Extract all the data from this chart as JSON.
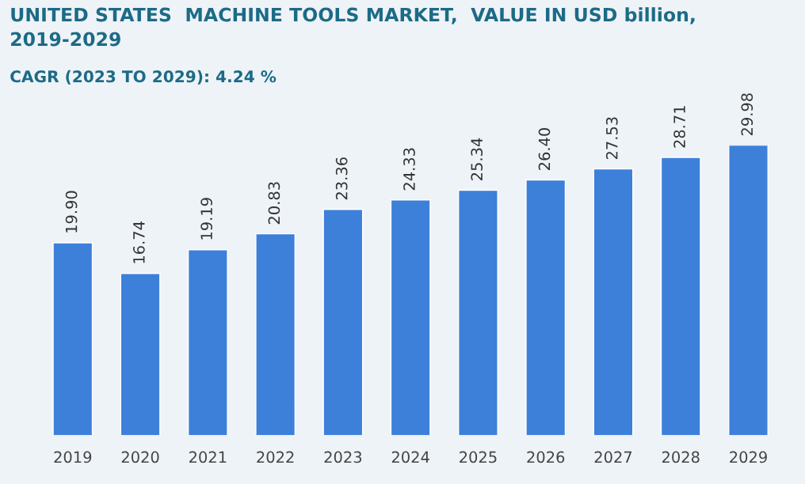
{
  "chart_data": {
    "type": "bar",
    "title": "UNITED STATES  MACHINE TOOLS MARKET,  VALUE IN USD billion,\n2019-2029",
    "subtitle": "CAGR (2023 TO 2029): 4.24 %",
    "categories": [
      "2019",
      "2020",
      "2021",
      "2022",
      "2023",
      "2024",
      "2025",
      "2026",
      "2027",
      "2028",
      "2029"
    ],
    "values": [
      19.9,
      16.74,
      19.19,
      20.83,
      23.36,
      24.33,
      25.34,
      26.4,
      27.53,
      28.71,
      29.98
    ],
    "value_labels": [
      "19.90",
      "16.74",
      "19.19",
      "20.83",
      "23.36",
      "24.33",
      "25.34",
      "26.40",
      "27.53",
      "28.71",
      "29.98"
    ],
    "color": "#3d80da",
    "grid": false,
    "legend": false
  }
}
